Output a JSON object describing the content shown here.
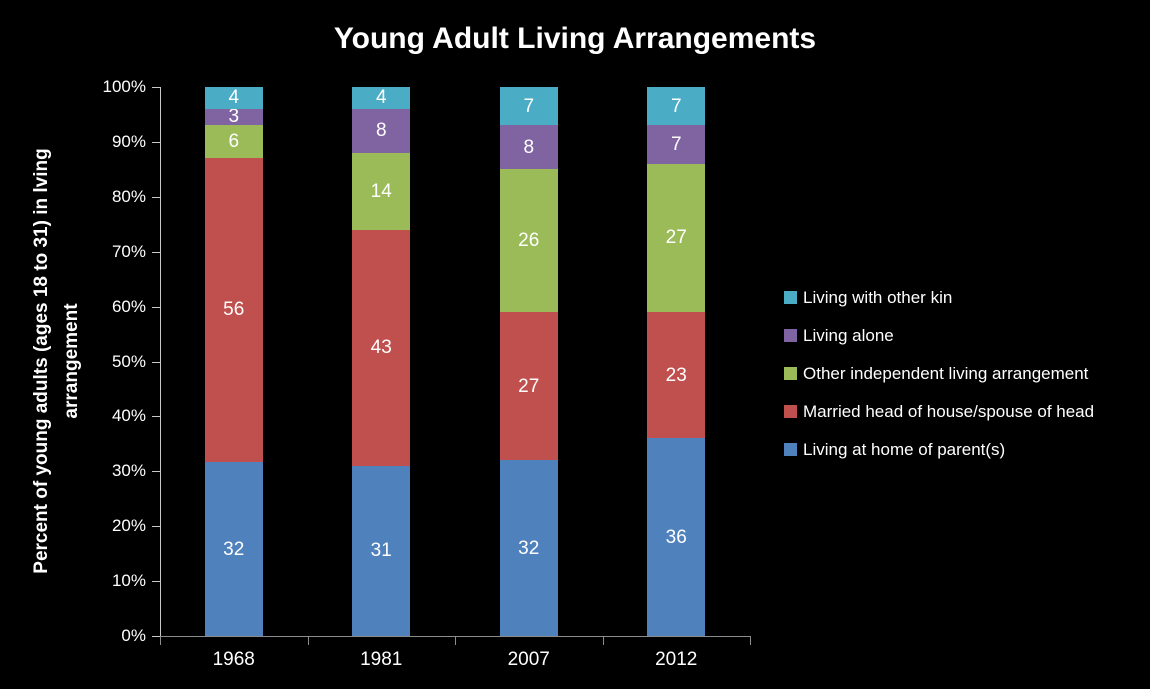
{
  "title": "Young Adult Living Arrangements",
  "chart_data": {
    "type": "bar",
    "subtype": "stacked-100-percent-column",
    "title": "Young Adult Living Arrangements",
    "ylabel": "Percent of young adults (ages 18 to 31) in lving arrangement",
    "ylabel_lines": [
      "Percent of young adults (ages 18 to 31) in lving",
      "arrangement"
    ],
    "xlabel": "",
    "categories": [
      "1968",
      "1981",
      "2007",
      "2012"
    ],
    "series": [
      {
        "name": "Living at home of parent(s)",
        "color": "#4F81BD",
        "values": [
          32,
          31,
          32,
          36
        ]
      },
      {
        "name": "Married head of house/spouse of head",
        "color": "#C0504D",
        "values": [
          56,
          43,
          27,
          23
        ]
      },
      {
        "name": "Other independent living arrangement",
        "color": "#9BBB59",
        "values": [
          6,
          14,
          26,
          27
        ]
      },
      {
        "name": "Living alone",
        "color": "#8064A2",
        "values": [
          3,
          8,
          8,
          7
        ]
      },
      {
        "name": "Living with other kin",
        "color": "#4BACC6",
        "values": [
          4,
          4,
          7,
          7
        ]
      }
    ],
    "data_labels_shown": true,
    "yticks": [
      "0%",
      "10%",
      "20%",
      "30%",
      "40%",
      "50%",
      "60%",
      "70%",
      "80%",
      "90%",
      "100%"
    ],
    "ylim": [
      0,
      100
    ],
    "grid": false,
    "legend_position": "right",
    "legend_order_top_to_bottom": [
      "Living with other kin",
      "Living alone",
      "Other independent living arrangement",
      "Married head of house/spouse of head",
      "Living at home of parent(s)"
    ]
  },
  "colors": {
    "background": "#000000",
    "text": "#FFFFFF",
    "y_axis": "#C9C9C9",
    "x_axis": "#8C8C8C"
  }
}
